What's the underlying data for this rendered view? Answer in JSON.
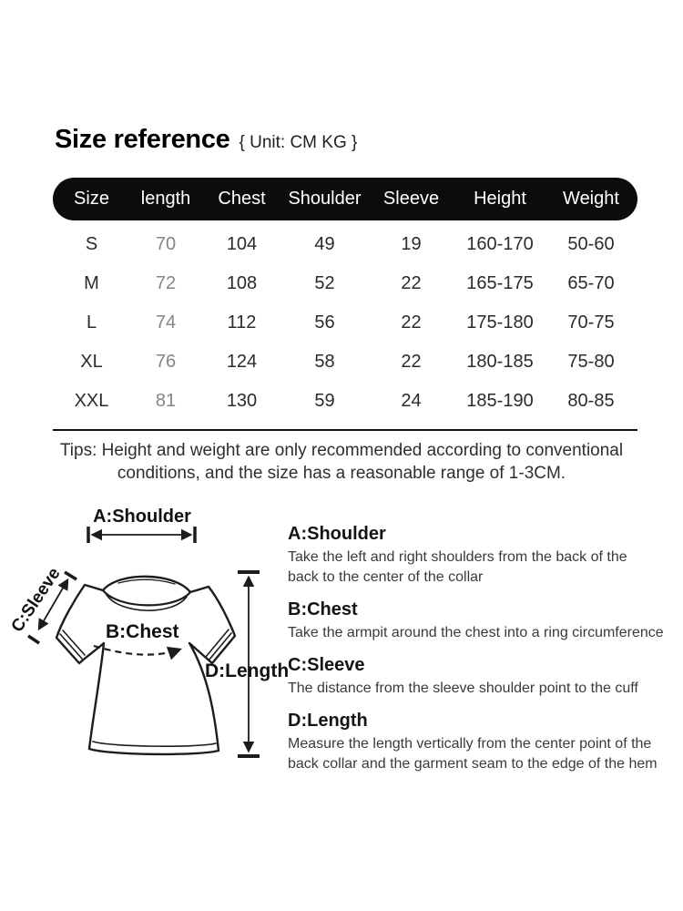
{
  "header": {
    "title": "Size reference",
    "unit": "{ Unit: CM KG }"
  },
  "size_table": {
    "columns": [
      "Size",
      "length",
      "Chest",
      "Shoulder",
      "Sleeve",
      "Height",
      "Weight"
    ],
    "rows": [
      [
        "S",
        "70",
        "104",
        "49",
        "19",
        "160-170",
        "50-60"
      ],
      [
        "M",
        "72",
        "108",
        "52",
        "22",
        "165-175",
        "65-70"
      ],
      [
        "L",
        "74",
        "112",
        "56",
        "22",
        "175-180",
        "70-75"
      ],
      [
        "XL",
        "76",
        "124",
        "58",
        "22",
        "180-185",
        "75-80"
      ],
      [
        "XXL",
        "81",
        "130",
        "59",
        "24",
        "185-190",
        "80-85"
      ]
    ],
    "header_bg": "#0c0c0c",
    "header_text_color": "#ffffff",
    "length_column_color": "#858585"
  },
  "tips": {
    "text": "Tips: Height and weight are only recommended according to conventional conditions, and the size has a reasonable range of 1-3CM."
  },
  "diagram": {
    "labels": {
      "shoulder": "A:Shoulder",
      "chest": "B:Chest",
      "sleeve": "C:Sleeve",
      "length": "D:Length"
    }
  },
  "measure_guide": [
    {
      "title": "A:Shoulder",
      "desc": "Take the left and right shoulders from the back of the back to the center of the collar"
    },
    {
      "title": "B:Chest",
      "desc": "Take the armpit around the chest into a ring circumference"
    },
    {
      "title": "C:Sleeve",
      "desc": "The distance from the sleeve shoulder point to the cuff"
    },
    {
      "title": "D:Length",
      "desc": "Measure the length vertically from the center point of the back collar and the garment seam to the edge of the hem"
    }
  ]
}
